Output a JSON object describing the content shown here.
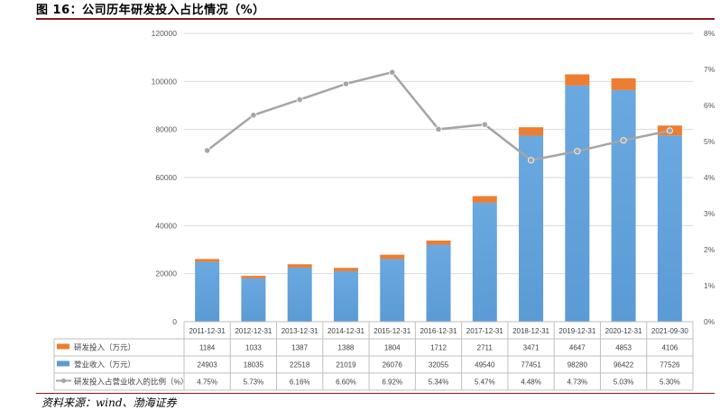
{
  "figure": {
    "title": "图 16：公司历年研发投入占比情况（%）",
    "source": "资料来源：wind、渤海证券"
  },
  "colors": {
    "rd": "#ed7d31",
    "revenue": "#5b9bd5",
    "line": "#a5a5a5",
    "grid": "#d9d9d9",
    "rule": "#8b1a1a"
  },
  "chart_data": {
    "type": "bar",
    "stacked": true,
    "categories": [
      "2011-12-31",
      "2012-12-31",
      "2013-12-31",
      "2014-12-31",
      "2015-12-31",
      "2016-12-31",
      "2017-12-31",
      "2018-12-31",
      "2019-12-31",
      "2020-12-31",
      "2021-09-30"
    ],
    "series": [
      {
        "name": "研发投入（万元）",
        "type": "bar",
        "axis": "left",
        "color": "#ed7d31",
        "values": [
          1184,
          1033,
          1387,
          1388,
          1804,
          1712,
          2711,
          3471,
          4647,
          4853,
          4106
        ],
        "labels": [
          "1184",
          "1033",
          "1387",
          "1388",
          "1804",
          "1712",
          "2711",
          "3471",
          "4647",
          "4853",
          "4106"
        ]
      },
      {
        "name": "营业收入（万元）",
        "type": "bar",
        "axis": "left",
        "color": "#5b9bd5",
        "values": [
          24903,
          18035,
          22518,
          21019,
          26076,
          32055,
          49540,
          77451,
          98280,
          96422,
          77526
        ],
        "labels": [
          "24903",
          "18035",
          "22518",
          "21019",
          "26076",
          "32055",
          "49540",
          "77451",
          "98280",
          "96422",
          "77526"
        ]
      },
      {
        "name": "研发投入占营业收入的比例（%）",
        "type": "line",
        "axis": "right",
        "color": "#a5a5a5",
        "values": [
          4.75,
          5.73,
          6.16,
          6.6,
          6.92,
          5.34,
          5.47,
          4.48,
          4.73,
          5.03,
          5.3
        ],
        "labels": [
          "4.75%",
          "5.73%",
          "6.16%",
          "6.60%",
          "6.92%",
          "5.34%",
          "5.47%",
          "4.48%",
          "4.73%",
          "5.03%",
          "5.30%"
        ]
      }
    ],
    "y_left": {
      "min": 0,
      "max": 120000,
      "ticks": [
        0,
        20000,
        40000,
        60000,
        80000,
        100000,
        120000
      ],
      "tick_labels": [
        "0",
        "20000",
        "40000",
        "60000",
        "80000",
        "100000",
        "120000"
      ]
    },
    "y_right": {
      "min": 0,
      "max": 8,
      "ticks": [
        0,
        1,
        2,
        3,
        4,
        5,
        6,
        7,
        8
      ],
      "tick_labels": [
        "0%",
        "1%",
        "2%",
        "3%",
        "4%",
        "5%",
        "6%",
        "7%",
        "8%"
      ]
    },
    "grid": true,
    "legend": "data table below chart"
  }
}
